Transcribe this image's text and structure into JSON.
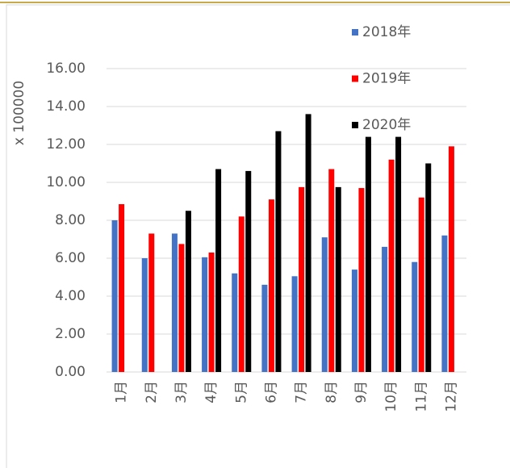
{
  "chart_data": {
    "type": "bar",
    "y_axis_label": "x 100000",
    "categories": [
      "1月",
      "2月",
      "3月",
      "4月",
      "5月",
      "6月",
      "7月",
      "8月",
      "9月",
      "10月",
      "11月",
      "12月"
    ],
    "series": [
      {
        "name": "2018年",
        "color": "#4472c4",
        "values": [
          8.0,
          6.0,
          7.3,
          6.05,
          5.2,
          4.6,
          5.05,
          7.1,
          5.4,
          6.6,
          5.8,
          7.2
        ]
      },
      {
        "name": "2019年",
        "color": "#ff0000",
        "values": [
          8.85,
          7.3,
          6.75,
          6.3,
          8.2,
          9.1,
          9.75,
          10.7,
          9.7,
          11.2,
          9.2,
          11.9
        ]
      },
      {
        "name": "2020年",
        "color": "#000000",
        "values": [
          null,
          null,
          8.5,
          10.7,
          10.6,
          12.7,
          13.6,
          9.75,
          12.4,
          12.4,
          11.0,
          null
        ]
      }
    ],
    "ylim": [
      0,
      16
    ],
    "yticks": [
      {
        "value": 0,
        "label": "0.00"
      },
      {
        "value": 2,
        "label": "2.00"
      },
      {
        "value": 4,
        "label": "4.00"
      },
      {
        "value": 6,
        "label": "6.00"
      },
      {
        "value": 8,
        "label": "8.00"
      },
      {
        "value": 10,
        "label": "10.00"
      },
      {
        "value": 12,
        "label": "12.00"
      },
      {
        "value": 14,
        "label": "14.00"
      },
      {
        "value": 16,
        "label": "16.00"
      }
    ],
    "grid": true,
    "legend": "top-right"
  }
}
